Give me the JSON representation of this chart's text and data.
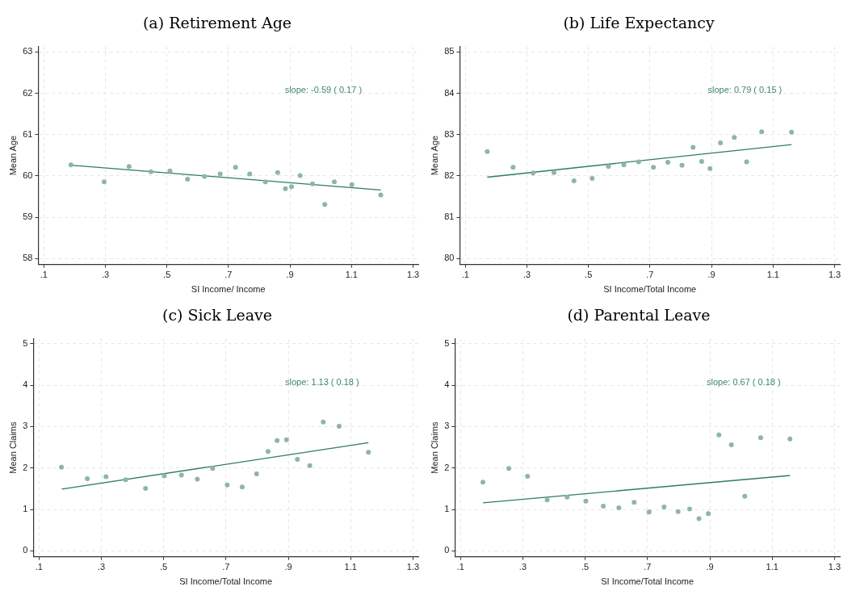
{
  "chart_data": [
    {
      "type": "scatter",
      "title": "(a) Retirement Age",
      "xlabel": "SI Income/ Income",
      "ylabel": "Mean Age",
      "annotations": [
        "slope: -0.59 ( 0.17 )"
      ],
      "xlim": [
        0.082,
        1.317
      ],
      "ylim": [
        57.86,
        63.13
      ],
      "xticks": [
        {
          "value": 0.1,
          "label": ".1"
        },
        {
          "value": 0.3,
          "label": ".3"
        },
        {
          "value": 0.5,
          "label": ".5"
        },
        {
          "value": 0.7,
          "label": ".7"
        },
        {
          "value": 0.9,
          "label": ".9"
        },
        {
          "value": 1.1,
          "label": "1.1"
        },
        {
          "value": 1.3,
          "label": "1.3"
        }
      ],
      "yticks": [
        58,
        59,
        60,
        61,
        62,
        63
      ],
      "grid": true,
      "legend": false,
      "series": [
        {
          "type": "scatter",
          "marker": "circle",
          "color": "#8fb5a8",
          "x": [
            0.188,
            0.296,
            0.377,
            0.448,
            0.51,
            0.567,
            0.622,
            0.673,
            0.723,
            0.769,
            0.82,
            0.86,
            0.885,
            0.905,
            0.933,
            0.973,
            1.013,
            1.044,
            1.101,
            1.195
          ],
          "values": [
            60.27,
            59.86,
            60.23,
            60.1,
            60.12,
            59.92,
            59.99,
            60.05,
            60.21,
            60.05,
            59.86,
            60.08,
            59.69,
            59.74,
            60.01,
            59.81,
            59.31,
            59.86,
            59.79,
            59.54
          ]
        },
        {
          "type": "line",
          "marker": "none",
          "color": "#2f7a6c",
          "x": [
            0.188,
            1.195
          ],
          "values": [
            60.26,
            59.66
          ]
        }
      ]
    },
    {
      "type": "scatter",
      "title": "(b) Life Expectancy",
      "xlabel": "SI Income/Total Income",
      "ylabel": "Mean Age",
      "annotations": [
        "slope: 0.79 ( 0.15 )"
      ],
      "xlim": [
        0.082,
        1.317
      ],
      "ylim": [
        79.86,
        85.13
      ],
      "xticks": [
        {
          "value": 0.1,
          "label": ".1"
        },
        {
          "value": 0.3,
          "label": ".3"
        },
        {
          "value": 0.5,
          "label": ".5"
        },
        {
          "value": 0.7,
          "label": ".7"
        },
        {
          "value": 0.9,
          "label": ".9"
        },
        {
          "value": 1.1,
          "label": "1.1"
        },
        {
          "value": 1.3,
          "label": "1.3"
        }
      ],
      "yticks": [
        80,
        81,
        82,
        83,
        84,
        85
      ],
      "grid": true,
      "legend": false,
      "series": [
        {
          "type": "scatter",
          "marker": "circle",
          "color": "#8fb5a8",
          "x": [
            0.171,
            0.255,
            0.32,
            0.388,
            0.453,
            0.512,
            0.565,
            0.615,
            0.663,
            0.711,
            0.758,
            0.804,
            0.84,
            0.868,
            0.895,
            0.929,
            0.974,
            1.014,
            1.063,
            1.16
          ],
          "values": [
            82.59,
            82.21,
            82.07,
            82.08,
            81.88,
            81.94,
            82.23,
            82.27,
            82.34,
            82.21,
            82.33,
            82.26,
            82.69,
            82.35,
            82.18,
            82.8,
            82.93,
            82.34,
            83.07,
            83.06
          ]
        },
        {
          "type": "line",
          "marker": "none",
          "color": "#2f7a6c",
          "x": [
            0.171,
            1.16
          ],
          "values": [
            81.97,
            82.76
          ]
        }
      ]
    },
    {
      "type": "scatter",
      "title": "(c) Sick Leave",
      "xlabel": "SI Income/Total Income",
      "ylabel": "Mean Claims",
      "annotations": [
        "slope: 1.13 ( 0.18 )"
      ],
      "xlim": [
        0.082,
        1.317
      ],
      "ylim": [
        -0.14,
        5.12
      ],
      "xticks": [
        {
          "value": 0.1,
          "label": ".1"
        },
        {
          "value": 0.3,
          "label": ".3"
        },
        {
          "value": 0.5,
          "label": ".5"
        },
        {
          "value": 0.7,
          "label": ".7"
        },
        {
          "value": 0.9,
          "label": ".9"
        },
        {
          "value": 1.1,
          "label": "1.1"
        },
        {
          "value": 1.3,
          "label": "1.3"
        }
      ],
      "yticks": [
        0,
        1,
        2,
        3,
        4,
        5
      ],
      "grid": true,
      "legend": false,
      "series": [
        {
          "type": "scatter",
          "marker": "circle",
          "color": "#8fb5a8",
          "x": [
            0.172,
            0.255,
            0.315,
            0.378,
            0.442,
            0.502,
            0.557,
            0.608,
            0.657,
            0.704,
            0.752,
            0.798,
            0.835,
            0.864,
            0.894,
            0.929,
            0.969,
            1.012,
            1.063,
            1.157
          ],
          "values": [
            2.02,
            1.74,
            1.79,
            1.72,
            1.51,
            1.81,
            1.83,
            1.73,
            1.99,
            1.59,
            1.54,
            1.86,
            2.4,
            2.66,
            2.68,
            2.21,
            2.06,
            3.11,
            3.01,
            2.38
          ]
        },
        {
          "type": "line",
          "marker": "none",
          "color": "#2f7a6c",
          "x": [
            0.173,
            1.157
          ],
          "values": [
            1.49,
            2.61
          ]
        }
      ]
    },
    {
      "type": "scatter",
      "title": "(d) Parental Leave",
      "xlabel": "SI Income/Total Income",
      "ylabel": "Mean Claims",
      "annotations": [
        "slope: 0.67 ( 0.18 )"
      ],
      "xlim": [
        0.082,
        1.317
      ],
      "ylim": [
        -0.14,
        5.12
      ],
      "xticks": [
        {
          "value": 0.1,
          "label": ".1"
        },
        {
          "value": 0.3,
          "label": ".3"
        },
        {
          "value": 0.5,
          "label": ".5"
        },
        {
          "value": 0.7,
          "label": ".7"
        },
        {
          "value": 0.9,
          "label": ".9"
        },
        {
          "value": 1.1,
          "label": "1.1"
        },
        {
          "value": 1.3,
          "label": "1.3"
        }
      ],
      "yticks": [
        0,
        1,
        2,
        3,
        4,
        5
      ],
      "grid": true,
      "legend": false,
      "series": [
        {
          "type": "scatter",
          "marker": "circle",
          "color": "#8fb5a8",
          "x": [
            0.172,
            0.255,
            0.315,
            0.378,
            0.442,
            0.502,
            0.558,
            0.608,
            0.657,
            0.705,
            0.753,
            0.798,
            0.835,
            0.865,
            0.895,
            0.929,
            0.969,
            1.012,
            1.063,
            1.157
          ],
          "values": [
            1.66,
            1.99,
            1.8,
            1.23,
            1.3,
            1.2,
            1.08,
            1.04,
            1.17,
            0.94,
            1.06,
            0.95,
            1.01,
            0.78,
            0.9,
            2.8,
            2.56,
            1.32,
            2.73,
            2.7
          ]
        },
        {
          "type": "line",
          "marker": "none",
          "color": "#2f7a6c",
          "x": [
            0.172,
            1.157
          ],
          "values": [
            1.16,
            1.82
          ]
        }
      ]
    }
  ]
}
